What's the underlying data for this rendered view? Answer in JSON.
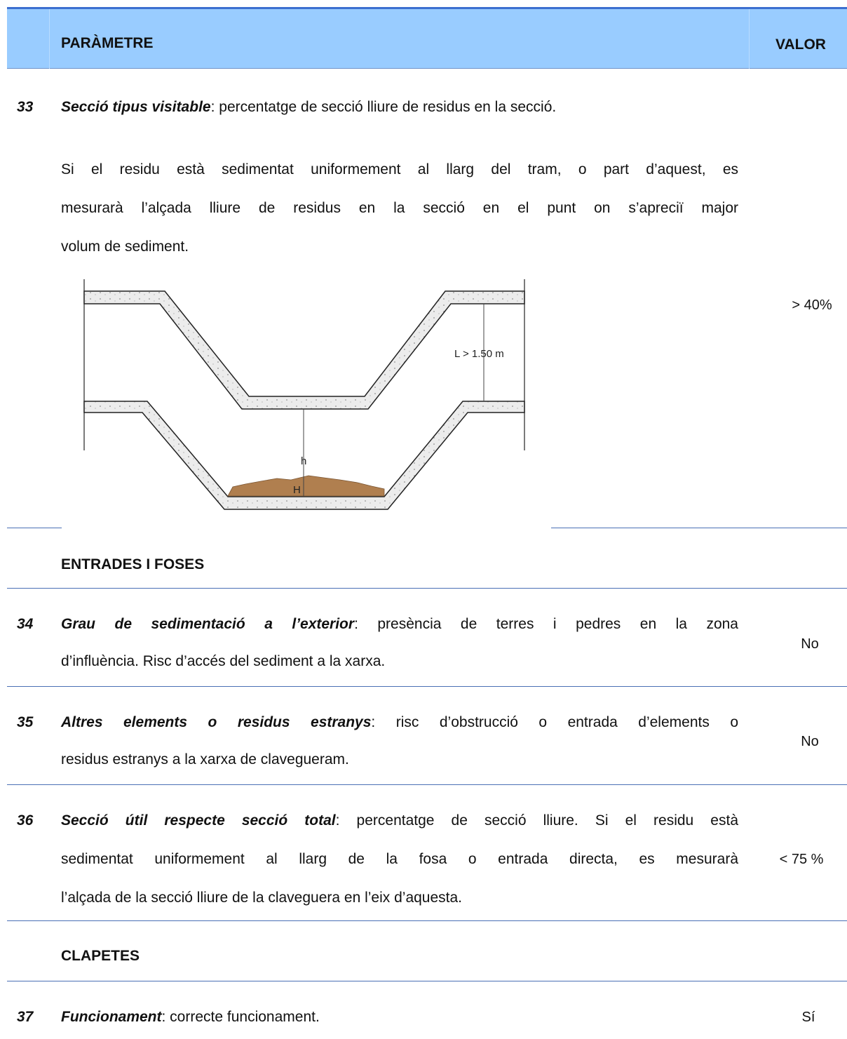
{
  "header": {
    "parameter": "PARÀMETRE",
    "value": "VALOR"
  },
  "rows": [
    {
      "number": "33",
      "term": "Secció tipus visitable",
      "lines": [
        ": percentatge de secció lliure de residus en la secció."
      ],
      "paragraph": [
        "Si el residu està sedimentat uniformement al llarg del tram, o part d’aquest, es",
        "mesurarà l’alçada lliure de residus en la secció en el punt on s’apreciï major",
        "volum de sediment."
      ],
      "figure": {
        "length_label": "L > 1.50 m",
        "h_label": "h",
        "H_label": "H"
      },
      "value": "> 40%"
    },
    {
      "number": "34",
      "term": "Grau de sedimentació a l’exterior",
      "lines": [
        ": presència de terres i pedres en la zona",
        "d’influència. Risc d’accés del sediment a la xarxa."
      ],
      "value": "No"
    },
    {
      "number": "35",
      "term": "Altres elements o residus estranys",
      "lines": [
        ": risc d’obstrucció o entrada d’elements o",
        "residus estranys a la xarxa de clavegueram."
      ],
      "value": "No"
    },
    {
      "number": "36",
      "term": "Secció útil respecte secció total",
      "lines": [
        ": percentatge de secció lliure. Si el residu està",
        "sedimentat uniformement al llarg de la fosa o entrada directa, es mesurarà",
        "l’alçada de la secció lliure de la claveguera en l’eix d’aquesta."
      ],
      "value": "< 75 %"
    },
    {
      "number": "37",
      "term": "Funcionament",
      "lines": [
        ": correcte funcionament."
      ],
      "value": "Sí"
    }
  ],
  "sections": [
    "ENTRADES I FOSES",
    "CLAPETES"
  ]
}
